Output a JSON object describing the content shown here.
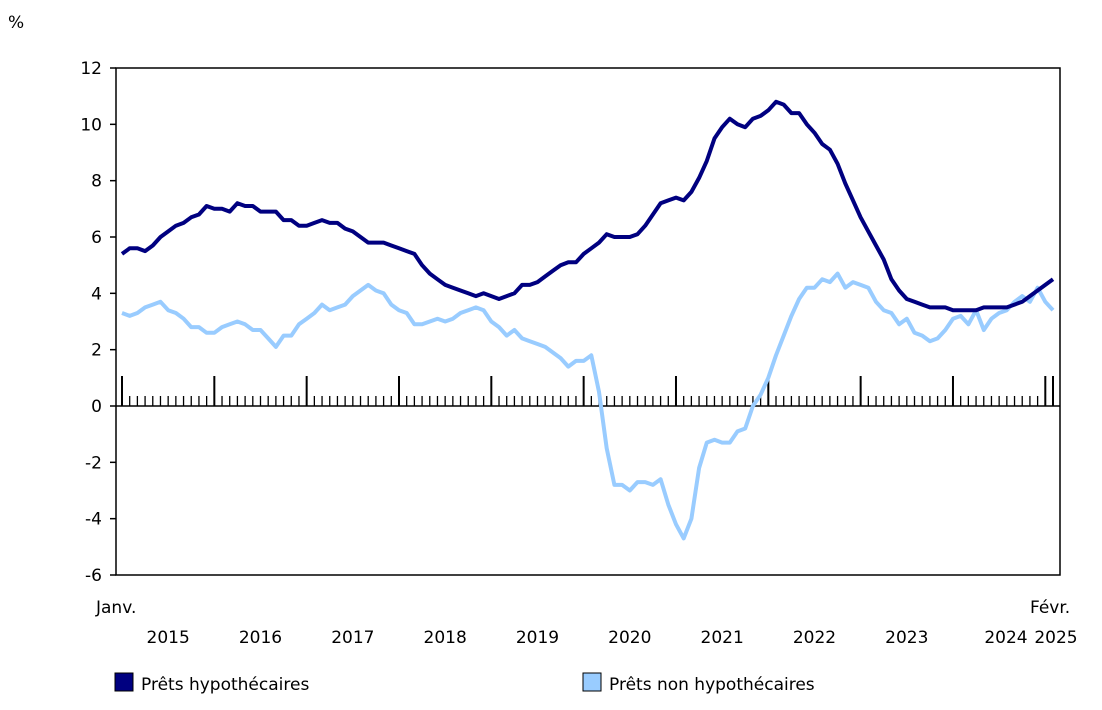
{
  "chart_data": {
    "type": "line",
    "ylabel": "%",
    "ylim": [
      -6,
      12
    ],
    "yticks": [
      -6,
      -4,
      -2,
      0,
      2,
      4,
      6,
      8,
      10,
      12
    ],
    "x_start": "2015-01",
    "x_end": "2025-02",
    "x_start_label": "Janv.",
    "x_end_label": "Févr.",
    "year_labels": [
      "2015",
      "2016",
      "2017",
      "2018",
      "2019",
      "2020",
      "2021",
      "2022",
      "2023",
      "2024",
      "2025"
    ],
    "grid": false,
    "legend_position": "bottom",
    "series": [
      {
        "name": "Prêts hypothécaires",
        "color": "#000080",
        "values": [
          5.4,
          5.6,
          5.6,
          5.5,
          5.7,
          6.0,
          6.2,
          6.4,
          6.5,
          6.7,
          6.8,
          7.1,
          7.0,
          7.0,
          6.9,
          7.2,
          7.1,
          7.1,
          6.9,
          6.9,
          6.9,
          6.6,
          6.6,
          6.4,
          6.4,
          6.5,
          6.6,
          6.5,
          6.5,
          6.3,
          6.2,
          6.0,
          5.8,
          5.8,
          5.8,
          5.7,
          5.6,
          5.5,
          5.4,
          5.0,
          4.7,
          4.5,
          4.3,
          4.2,
          4.1,
          4.0,
          3.9,
          4.0,
          3.9,
          3.8,
          3.9,
          4.0,
          4.3,
          4.3,
          4.4,
          4.6,
          4.8,
          5.0,
          5.1,
          5.1,
          5.4,
          5.6,
          5.8,
          6.1,
          6.0,
          6.0,
          6.0,
          6.1,
          6.4,
          6.8,
          7.2,
          7.3,
          7.4,
          7.3,
          7.6,
          8.1,
          8.7,
          9.5,
          9.9,
          10.2,
          10.0,
          9.9,
          10.2,
          10.3,
          10.5,
          10.8,
          10.7,
          10.4,
          10.4,
          10.0,
          9.7,
          9.3,
          9.1,
          8.6,
          7.9,
          7.3,
          6.7,
          6.2,
          5.7,
          5.2,
          4.5,
          4.1,
          3.8,
          3.7,
          3.6,
          3.5,
          3.5,
          3.5,
          3.4,
          3.4,
          3.4,
          3.4,
          3.5,
          3.5,
          3.5,
          3.5,
          3.6,
          3.7,
          3.9,
          4.1,
          4.3,
          4.5
        ]
      },
      {
        "name": "Prêts non hypothécaires",
        "color": "#99CCFF",
        "values": [
          3.3,
          3.2,
          3.3,
          3.5,
          3.6,
          3.7,
          3.4,
          3.3,
          3.1,
          2.8,
          2.8,
          2.6,
          2.6,
          2.8,
          2.9,
          3.0,
          2.9,
          2.7,
          2.7,
          2.4,
          2.1,
          2.5,
          2.5,
          2.9,
          3.1,
          3.3,
          3.6,
          3.4,
          3.5,
          3.6,
          3.9,
          4.1,
          4.3,
          4.1,
          4.0,
          3.6,
          3.4,
          3.3,
          2.9,
          2.9,
          3.0,
          3.1,
          3.0,
          3.1,
          3.3,
          3.4,
          3.5,
          3.4,
          3.0,
          2.8,
          2.5,
          2.7,
          2.4,
          2.3,
          2.2,
          2.1,
          1.9,
          1.7,
          1.4,
          1.6,
          1.6,
          1.8,
          0.5,
          -1.5,
          -2.8,
          -2.8,
          -3.0,
          -2.7,
          -2.7,
          -2.8,
          -2.6,
          -3.5,
          -4.2,
          -4.7,
          -4.0,
          -2.2,
          -1.3,
          -1.2,
          -1.3,
          -1.3,
          -0.9,
          -0.8,
          0.0,
          0.4,
          1.0,
          1.8,
          2.5,
          3.2,
          3.8,
          4.2,
          4.2,
          4.5,
          4.4,
          4.7,
          4.2,
          4.4,
          4.3,
          4.2,
          3.7,
          3.4,
          3.3,
          2.9,
          3.1,
          2.6,
          2.5,
          2.3,
          2.4,
          2.7,
          3.1,
          3.2,
          2.9,
          3.4,
          2.7,
          3.1,
          3.3,
          3.4,
          3.7,
          3.9,
          3.7,
          4.2,
          3.7,
          3.4
        ]
      }
    ]
  }
}
